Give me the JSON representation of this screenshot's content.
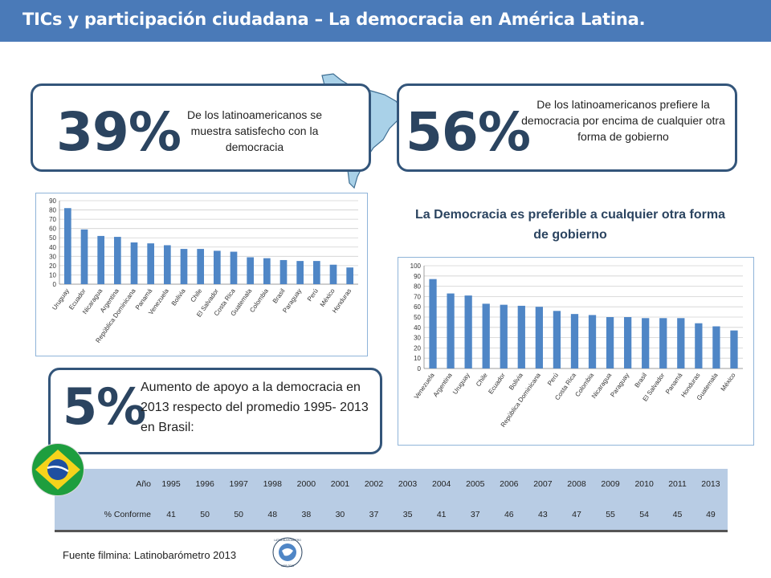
{
  "header": {
    "title": "TICs y participación ciudadana – La democracia en América Latina."
  },
  "stat1": {
    "value": "39%",
    "text": "De los latinoamericanos se muestra satisfecho con la democracia"
  },
  "stat2": {
    "value": "56%",
    "text": "De los latinoamericanos prefiere la democracia por encima de cualquier otra forma de gobierno"
  },
  "stat3": {
    "value": "5%",
    "text": "Aumento de apoyo a la democracia en 2013 respecto del promedio 1995- 2013 en Brasil:"
  },
  "colors": {
    "bar": "#4f86c6",
    "accent": "#2b4460",
    "header": "#4a7ab8"
  },
  "chart_data": [
    {
      "type": "bar",
      "title": "",
      "categories": [
        "Uruguay",
        "Ecuador",
        "Nicaragua",
        "Argentina",
        "República Dominicana",
        "Panamá",
        "Venezuela",
        "Bolivia",
        "Chile",
        "El Salvador",
        "Costa Rica",
        "Guatemala",
        "Colombia",
        "Brasil",
        "Paraguay",
        "Perú",
        "México",
        "Honduras"
      ],
      "values": [
        82,
        59,
        52,
        51,
        45,
        44,
        42,
        38,
        38,
        36,
        35,
        29,
        28,
        26,
        25,
        25,
        21,
        18
      ],
      "ylim": [
        0,
        90
      ],
      "yticks": [
        0,
        10,
        20,
        30,
        40,
        50,
        60,
        70,
        80,
        90
      ],
      "grid": true
    },
    {
      "type": "bar",
      "title": "La Democracia es preferible a cualquier otra forma de gobierno",
      "categories": [
        "Venezuela",
        "Argentina",
        "Uruguay",
        "Chile",
        "Ecuador",
        "Bolivia",
        "República Dominicana",
        "Perú",
        "Costa Rica",
        "Colombia",
        "Nicaragua",
        "Paraguay",
        "Brasil",
        "El Salvador",
        "Panamá",
        "Honduras",
        "Guatemala",
        "México"
      ],
      "values": [
        87,
        73,
        71,
        63,
        62,
        61,
        60,
        56,
        53,
        52,
        50,
        50,
        49,
        49,
        49,
        44,
        41,
        37
      ],
      "ylim": [
        0,
        100
      ],
      "yticks": [
        0,
        10,
        20,
        30,
        40,
        50,
        60,
        70,
        80,
        90,
        100
      ],
      "grid": true
    },
    {
      "type": "table",
      "row_labels": [
        "Año",
        "% Conforme"
      ],
      "years": [
        "1995",
        "1996",
        "1997",
        "1998",
        "2000",
        "2001",
        "2002",
        "2003",
        "2004",
        "2005",
        "2006",
        "2007",
        "2008",
        "2009",
        "2010",
        "2011",
        "2013"
      ],
      "values": [
        "41",
        "50",
        "50",
        "48",
        "38",
        "30",
        "37",
        "35",
        "41",
        "37",
        "46",
        "43",
        "47",
        "55",
        "54",
        "45",
        "49"
      ]
    }
  ],
  "footer": {
    "source": "Fuente filmina: Latinobarómetro 2013"
  },
  "logo": {
    "label": "LATINOBARÓMETRO",
    "years": "1995 2013"
  }
}
